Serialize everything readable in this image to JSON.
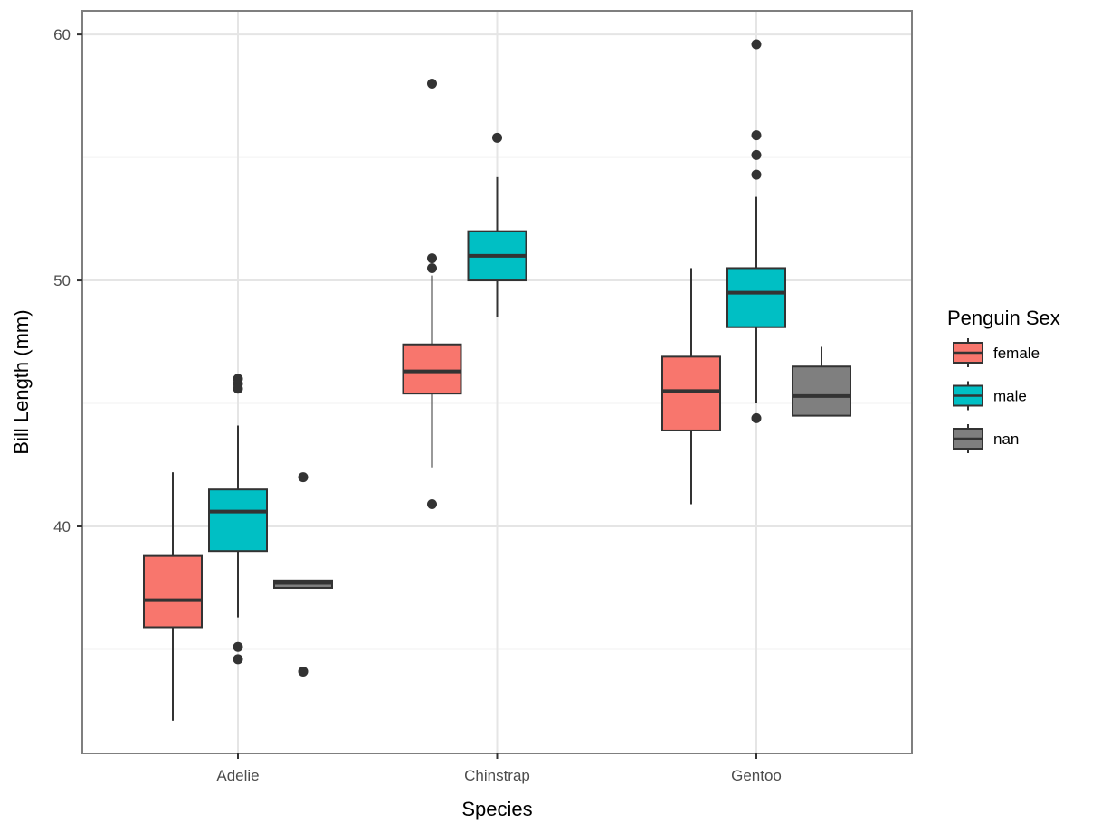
{
  "chart_data": {
    "type": "boxplot",
    "title": "",
    "xlabel": "Species",
    "ylabel": "Bill Length (mm)",
    "categories": [
      "Adelie",
      "Chinstrap",
      "Gentoo"
    ],
    "ylim": [
      30.77,
      60.96
    ],
    "yticks": [
      40,
      50,
      60
    ],
    "y_minor_gridlines": [
      35,
      45,
      55
    ],
    "grid": true,
    "legend": {
      "title": "Penguin Sex",
      "placement": "right",
      "entries": [
        {
          "label": "female",
          "color": "#F8766D"
        },
        {
          "label": "male",
          "color": "#00BFC4"
        },
        {
          "label": "nan",
          "color": "#7F7F7F"
        }
      ]
    },
    "series": [
      {
        "name": "female",
        "color": "#F8766D",
        "boxes": [
          {
            "category": "Adelie",
            "whisker_low": 32.1,
            "q1": 35.9,
            "median": 37.0,
            "q3": 38.8,
            "whisker_high": 42.2,
            "outliers": []
          },
          {
            "category": "Chinstrap",
            "whisker_low": 42.4,
            "q1": 45.4,
            "median": 46.3,
            "q3": 47.4,
            "whisker_high": 50.2,
            "outliers": [
              58.0,
              50.9,
              50.5,
              40.9
            ]
          },
          {
            "category": "Gentoo",
            "whisker_low": 40.9,
            "q1": 43.9,
            "median": 45.5,
            "q3": 46.9,
            "whisker_high": 50.5,
            "outliers": []
          }
        ]
      },
      {
        "name": "male",
        "color": "#00BFC4",
        "boxes": [
          {
            "category": "Adelie",
            "whisker_low": 36.3,
            "q1": 39.0,
            "median": 40.6,
            "q3": 41.5,
            "whisker_high": 44.1,
            "outliers": [
              46.0,
              45.8,
              45.6,
              35.1,
              34.6
            ]
          },
          {
            "category": "Chinstrap",
            "whisker_low": 48.5,
            "q1": 50.0,
            "median": 51.0,
            "q3": 52.0,
            "whisker_high": 54.2,
            "outliers": [
              55.8
            ]
          },
          {
            "category": "Gentoo",
            "whisker_low": 45.0,
            "q1": 48.1,
            "median": 49.5,
            "q3": 50.5,
            "whisker_high": 53.4,
            "outliers": [
              59.6,
              55.9,
              55.1,
              54.3,
              44.4
            ]
          }
        ]
      },
      {
        "name": "nan",
        "color": "#7F7F7F",
        "boxes": [
          {
            "category": "Adelie",
            "whisker_low": 37.5,
            "q1": 37.5,
            "median": 37.7,
            "q3": 37.8,
            "whisker_high": 37.8,
            "outliers": [
              42.0,
              34.1
            ]
          },
          {
            "category": "Chinstrap",
            "missing": true
          },
          {
            "category": "Gentoo",
            "whisker_low": 44.5,
            "q1": 44.5,
            "median": 45.3,
            "q3": 46.5,
            "whisker_high": 47.3,
            "outliers": []
          }
        ]
      }
    ]
  }
}
